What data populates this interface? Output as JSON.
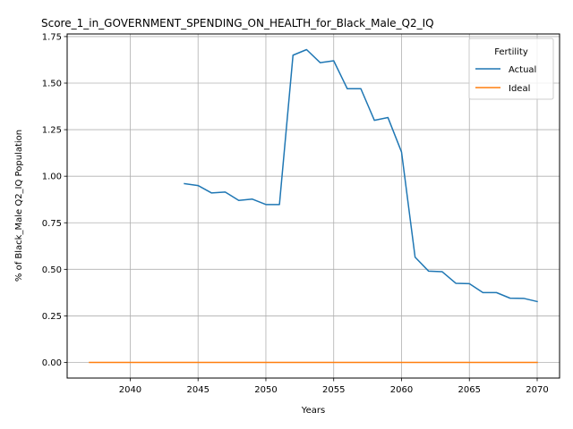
{
  "chart_data": {
    "type": "line",
    "title": "Score_1_in_GOVERNMENT_SPENDING_ON_HEALTH_for_Black_Male_Q2_IQ",
    "xlabel": "Years",
    "ylabel": "% of Black_Male Q2_IQ Population",
    "xlim": [
      2035.35,
      2071.65
    ],
    "ylim": [
      -0.084,
      1.764
    ],
    "xticks": [
      2040,
      2045,
      2050,
      2055,
      2060,
      2065,
      2070
    ],
    "xtick_labels": [
      "2040",
      "2045",
      "2050",
      "2055",
      "2060",
      "2065",
      "2070"
    ],
    "yticks": [
      0.0,
      0.25,
      0.5,
      0.75,
      1.0,
      1.25,
      1.5,
      1.75
    ],
    "ytick_labels": [
      "0.00",
      "0.25",
      "0.50",
      "0.75",
      "1.00",
      "1.25",
      "1.50",
      "1.75"
    ],
    "grid": true,
    "legend": {
      "title": "Fertility",
      "placement": "top-right"
    },
    "series": [
      {
        "name": "Actual",
        "color": "#1f77b4",
        "x": [
          2044,
          2045,
          2046,
          2047,
          2048,
          2049,
          2050,
          2051,
          2052,
          2053,
          2054,
          2055,
          2056,
          2057,
          2058,
          2059,
          2060,
          2061,
          2062,
          2063,
          2064,
          2065,
          2066,
          2067,
          2068,
          2069,
          2070
        ],
        "values": [
          0.96,
          0.95,
          0.91,
          0.915,
          0.87,
          0.877,
          0.848,
          0.848,
          1.65,
          1.68,
          1.61,
          1.62,
          1.47,
          1.47,
          1.3,
          1.315,
          1.13,
          0.565,
          0.49,
          0.487,
          0.425,
          0.423,
          0.375,
          0.375,
          0.345,
          0.344,
          0.327
        ]
      },
      {
        "name": "Ideal",
        "color": "#ff7f0e",
        "x": [
          2037,
          2040,
          2045,
          2050,
          2055,
          2060,
          2065,
          2070
        ],
        "values": [
          0,
          0,
          0,
          0,
          0,
          0,
          0,
          0
        ]
      }
    ]
  }
}
